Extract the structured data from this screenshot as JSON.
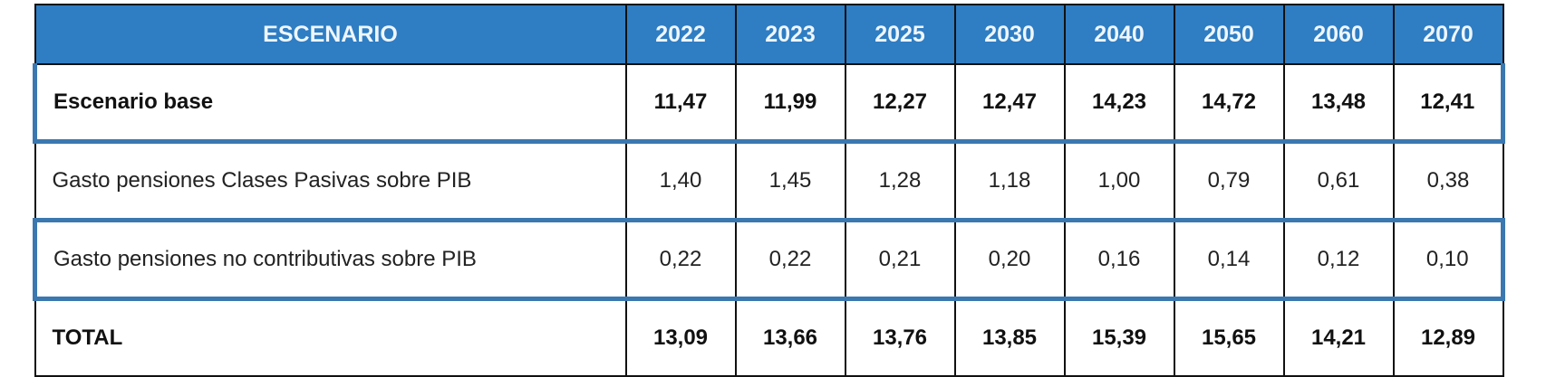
{
  "table": {
    "headers": [
      "ESCENARIO",
      "2022",
      "2023",
      "2025",
      "2030",
      "2040",
      "2050",
      "2060",
      "2070"
    ],
    "rows": [
      {
        "label": "Escenario base",
        "values": [
          "11,47",
          "11,99",
          "12,27",
          "12,47",
          "14,23",
          "14,72",
          "13,48",
          "12,41"
        ]
      },
      {
        "label": "Gasto pensiones Clases Pasivas sobre PIB",
        "values": [
          "1,40",
          "1,45",
          "1,28",
          "1,18",
          "1,00",
          "0,79",
          "0,61",
          "0,38"
        ]
      },
      {
        "label": "Gasto pensiones no contributivas sobre PIB",
        "values": [
          "0,22",
          "0,22",
          "0,21",
          "0,20",
          "0,16",
          "0,14",
          "0,12",
          "0,10"
        ]
      },
      {
        "label": "TOTAL",
        "values": [
          "13,09",
          "13,66",
          "13,76",
          "13,85",
          "15,39",
          "15,65",
          "14,21",
          "12,89"
        ]
      }
    ]
  },
  "colors": {
    "header_bg": "#2f7dc2",
    "header_text": "#eef6ff",
    "row_separator": "#3b78b0",
    "grid": "#111111"
  }
}
